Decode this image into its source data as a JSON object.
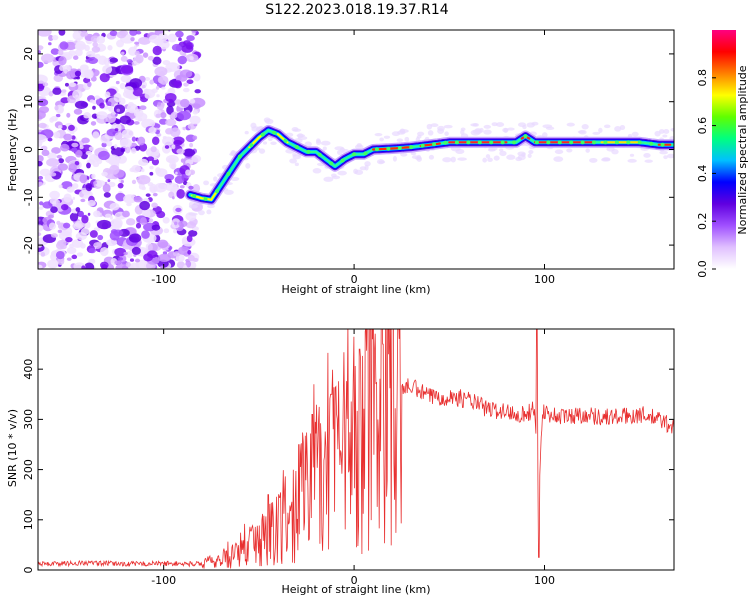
{
  "figure": {
    "title": "S122.2023.018.19.37.R14"
  },
  "chart_data": [
    {
      "type": "heatmap",
      "title": "S122.2023.018.19.37.R14",
      "xlabel": "Height of straight line (km)",
      "ylabel": "Frequency (Hz)",
      "xlim": [
        -166,
        168
      ],
      "ylim": [
        -25,
        25
      ],
      "x_ticks": [
        -100,
        0,
        100
      ],
      "y_ticks": [
        -20,
        -10,
        0,
        10,
        20
      ],
      "noise_region_x": [
        -166,
        -86
      ],
      "ridge": {
        "x": [
          -86,
          -80,
          -75,
          -70,
          -65,
          -60,
          -55,
          -50,
          -45,
          -40,
          -35,
          -30,
          -25,
          -20,
          -15,
          -10,
          -5,
          0,
          5,
          10,
          20,
          30,
          40,
          50,
          60,
          70,
          80,
          85,
          90,
          95,
          100,
          110,
          120,
          130,
          140,
          150,
          160,
          168
        ],
        "y": [
          -9.5,
          -10.2,
          -10.5,
          -7.5,
          -4.5,
          -1.5,
          0.5,
          2.5,
          4.0,
          3.2,
          1.5,
          0.5,
          -0.5,
          -0.5,
          -2.0,
          -3.5,
          -2.0,
          -1.0,
          -1.0,
          0.0,
          0.2,
          0.5,
          1.0,
          1.5,
          1.5,
          1.5,
          1.5,
          1.5,
          2.8,
          1.5,
          1.5,
          1.5,
          1.5,
          1.5,
          1.5,
          1.5,
          1.0,
          1.0
        ]
      },
      "colorbar": {
        "label": "Normalized spectral amplitude",
        "range": [
          0.0,
          1.0
        ],
        "ticks": [
          "0.0",
          "0.2",
          "0.4",
          "0.6",
          "0.8"
        ],
        "tick_values": [
          0.0,
          0.2,
          0.4,
          0.6,
          0.8
        ],
        "colors": [
          "#ffffff",
          "#e0c0ff",
          "#a050ff",
          "#6000e0",
          "#0000ff",
          "#00c0ff",
          "#00ff80",
          "#60ff00",
          "#ffff00",
          "#ff8000",
          "#ff0000",
          "#ff0080"
        ]
      }
    },
    {
      "type": "line",
      "xlabel": "Height of straight line (km)",
      "ylabel": "SNR (10 * v/v)",
      "xlim": [
        -166,
        168
      ],
      "ylim": [
        0,
        480
      ],
      "x_ticks": [
        -100,
        0,
        100
      ],
      "y_ticks": [
        0,
        100,
        200,
        300,
        400
      ],
      "color": "#e83030",
      "envelope": {
        "x": [
          -166,
          -140,
          -120,
          -100,
          -85,
          -75,
          -65,
          -55,
          -45,
          -35,
          -25,
          -15,
          -5,
          0,
          5,
          10,
          15,
          20,
          30,
          40,
          50,
          60,
          70,
          80,
          90,
          95,
          97,
          99,
          102,
          110,
          120,
          130,
          140,
          150,
          160,
          168
        ],
        "y": [
          12,
          14,
          12,
          13,
          12,
          15,
          25,
          45,
          70,
          110,
          160,
          200,
          230,
          250,
          300,
          340,
          355,
          360,
          365,
          345,
          345,
          340,
          320,
          315,
          310,
          320,
          150,
          320,
          310,
          305,
          310,
          305,
          305,
          310,
          300,
          285
        ]
      },
      "spikes": [
        {
          "x": -45,
          "value": 150
        },
        {
          "x": -22,
          "value": 310
        },
        {
          "x": -12,
          "value": 350
        },
        {
          "x": 3,
          "value": 440
        },
        {
          "x": 15,
          "value": 450
        },
        {
          "x": 96,
          "value": 490
        },
        {
          "x": 97,
          "value": 25
        }
      ]
    }
  ]
}
